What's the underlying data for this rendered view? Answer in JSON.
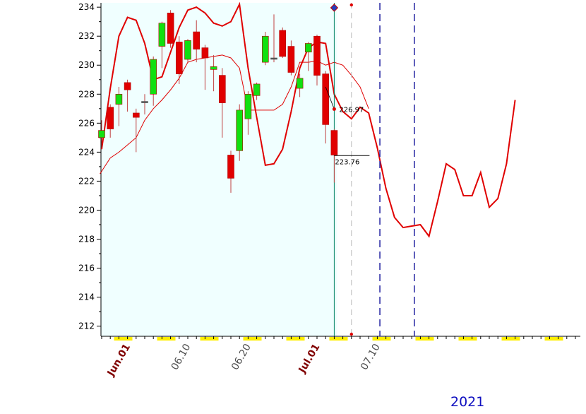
{
  "chart_data": {
    "type": "candlestick",
    "title": "",
    "xlabel": "",
    "ylabel": "",
    "ylim": [
      211.3,
      234.3
    ],
    "yticks": [
      212,
      214,
      216,
      218,
      220,
      222,
      224,
      226,
      228,
      230,
      232,
      234
    ],
    "grid": false,
    "year_label": "2021",
    "x_tick_labels": [
      {
        "label": "Jun.01",
        "bar": 3,
        "highlight": true
      },
      {
        "label": "06.10",
        "bar": 10,
        "highlight": false
      },
      {
        "label": "06.20",
        "bar": 17,
        "highlight": false
      },
      {
        "label": "Jul.01",
        "bar": 25,
        "highlight": true
      },
      {
        "label": "07.10",
        "bar": 32,
        "highlight": false
      }
    ],
    "candles": [
      {
        "o": 225.0,
        "h": 226.2,
        "l": 224.3,
        "c": 225.5
      },
      {
        "o": 227.1,
        "h": 227.3,
        "l": 225.0,
        "c": 225.6
      },
      {
        "o": 227.3,
        "h": 228.5,
        "l": 225.8,
        "c": 228.0
      },
      {
        "o": 228.8,
        "h": 229.0,
        "l": 226.8,
        "c": 228.3
      },
      {
        "o": 226.7,
        "h": 227.0,
        "l": 224.0,
        "c": 226.4
      },
      {
        "o": 227.5,
        "h": 228.0,
        "l": 226.6,
        "c": 227.5
      },
      {
        "o": 228.0,
        "h": 230.6,
        "l": 227.2,
        "c": 230.4
      },
      {
        "o": 231.3,
        "h": 233.0,
        "l": 229.8,
        "c": 232.9
      },
      {
        "o": 233.6,
        "h": 233.8,
        "l": 231.2,
        "c": 231.5
      },
      {
        "o": 231.6,
        "h": 232.0,
        "l": 228.7,
        "c": 229.4
      },
      {
        "o": 230.4,
        "h": 231.8,
        "l": 230.2,
        "c": 231.7
      },
      {
        "o": 232.3,
        "h": 233.1,
        "l": 230.2,
        "c": 231.1
      },
      {
        "o": 231.2,
        "h": 231.4,
        "l": 228.3,
        "c": 230.5
      },
      {
        "o": 229.7,
        "h": 230.7,
        "l": 228.2,
        "c": 229.9
      },
      {
        "o": 229.3,
        "h": 229.8,
        "l": 225.0,
        "c": 227.4
      },
      {
        "o": 223.8,
        "h": 224.1,
        "l": 221.2,
        "c": 222.2
      },
      {
        "o": 224.1,
        "h": 227.3,
        "l": 223.4,
        "c": 226.9
      },
      {
        "o": 226.3,
        "h": 228.2,
        "l": 225.2,
        "c": 228.0
      },
      {
        "o": 227.9,
        "h": 228.8,
        "l": 227.6,
        "c": 228.7
      },
      {
        "o": 230.2,
        "h": 232.3,
        "l": 230.0,
        "c": 232.0
      },
      {
        "o": 230.5,
        "h": 233.5,
        "l": 230.2,
        "c": 230.5
      },
      {
        "o": 232.4,
        "h": 232.6,
        "l": 230.5,
        "c": 230.6
      },
      {
        "o": 231.3,
        "h": 231.7,
        "l": 229.3,
        "c": 229.5
      },
      {
        "o": 228.4,
        "h": 229.4,
        "l": 227.8,
        "c": 229.1
      },
      {
        "o": 230.9,
        "h": 231.6,
        "l": 229.6,
        "c": 231.5
      },
      {
        "o": 232.0,
        "h": 232.1,
        "l": 228.6,
        "c": 229.3
      },
      {
        "o": 229.4,
        "h": 229.6,
        "l": 224.6,
        "c": 225.9
      },
      {
        "o": 225.5,
        "h": 225.6,
        "l": 221.9,
        "c": 223.8
      }
    ],
    "series": [
      {
        "kind": "envelope_line",
        "values": [
          224.2,
          228.4,
          232.0,
          233.3,
          233.1,
          231.5,
          229.0,
          229.2,
          230.9,
          232.6,
          233.8,
          234.0,
          233.6,
          232.9,
          232.7,
          233.0,
          234.2,
          229.8,
          226.4,
          223.1,
          223.2,
          224.2,
          226.8,
          229.8,
          231.2,
          231.6,
          231.5,
          228.0,
          226.8,
          226.3,
          227.1,
          226.7,
          224.3,
          221.5,
          219.5,
          218.8,
          218.9,
          219.0,
          218.2,
          220.6,
          223.2,
          222.8,
          221.0,
          221.0,
          222.6,
          220.2,
          220.8,
          223.2,
          227.6
        ],
        "at_bar": [
          0,
          1,
          2,
          3,
          4,
          5,
          6,
          7,
          8,
          9,
          10,
          11,
          12,
          13,
          14,
          15,
          16,
          17,
          18,
          19,
          20,
          21,
          22,
          23,
          24,
          25,
          26,
          27,
          28,
          29,
          30,
          31,
          32,
          33,
          34,
          35,
          36,
          37,
          38,
          39,
          40,
          41,
          42,
          43,
          44,
          45,
          46,
          47,
          48
        ]
      },
      {
        "kind": "moving_average",
        "values": [
          222.5,
          223.6,
          224.0,
          224.5,
          225.0,
          226.2,
          227.0,
          227.6,
          228.3,
          229.1,
          230.2,
          230.4,
          230.5,
          230.6,
          230.7,
          230.5,
          229.8,
          226.9,
          226.9,
          226.9,
          226.9,
          227.3,
          228.5,
          230.2,
          230.2,
          230.3,
          230.0,
          230.2,
          230.0,
          229.3,
          228.5,
          227.0
        ],
        "at_bar": [
          -0.2,
          1,
          2,
          3,
          4,
          5,
          6,
          7,
          8,
          9,
          10,
          11,
          12,
          13,
          14,
          15,
          16,
          17,
          18,
          19,
          20,
          21,
          22,
          23,
          24,
          25,
          26,
          27,
          28,
          29,
          30,
          31
        ]
      }
    ],
    "annotations": [
      {
        "text": "226.97",
        "value": 226.97
      },
      {
        "text": "223.76",
        "value": 223.76
      }
    ],
    "colors": {
      "background_plot": "#f0ffff",
      "up": "#10e010",
      "down": "#e00000",
      "doji": "#555555",
      "line": "#e00000",
      "current_bar_line": "#008060",
      "future_dash": "#2020a0",
      "weekend_marker": "#ffee00",
      "highlight_tick": "#800000",
      "normal_tick": "#505050"
    }
  }
}
